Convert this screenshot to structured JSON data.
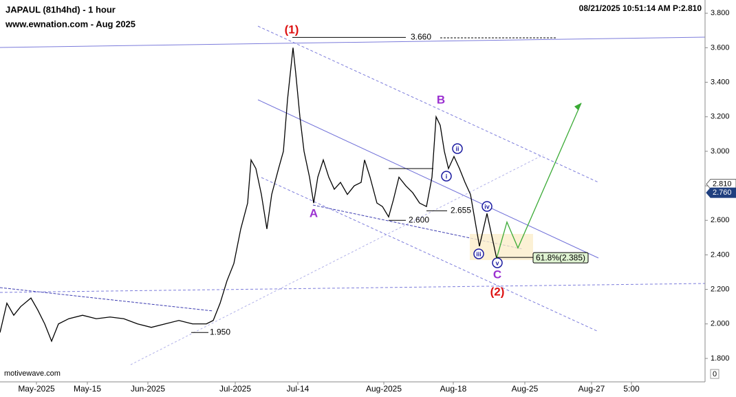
{
  "header": {
    "title": "JAPAUL (81h4hd) - 1 hour",
    "subtitle": "www.ewnation.com  - Aug 2025",
    "status": "08/21/2025 10:51:14 AM  P:2.810",
    "footer": "motivewave.com",
    "scroll_marker": "0"
  },
  "chart_data": {
    "type": "line",
    "x": [
      0,
      10,
      20,
      30,
      45,
      55,
      65,
      75,
      85,
      100,
      120,
      140,
      160,
      180,
      200,
      220,
      240,
      260,
      280,
      300,
      310,
      320,
      330,
      340,
      350,
      360,
      365,
      372,
      380,
      388,
      395,
      405,
      412,
      418,
      422,
      426,
      430,
      436,
      442,
      450,
      456,
      462,
      470,
      478,
      486,
      495,
      505,
      515,
      525,
      530,
      538,
      548,
      556,
      565,
      572,
      580,
      590,
      600,
      610,
      620,
      628,
      634,
      640,
      646,
      652,
      660,
      668,
      676,
      684
    ],
    "series": [
      {
        "color": "#000000",
        "values": [
          1.95,
          2.12,
          2.05,
          2.1,
          2.15,
          2.08,
          2.0,
          1.9,
          2.0,
          2.03,
          2.05,
          2.03,
          2.04,
          2.03,
          2.0,
          1.98,
          2.0,
          2.02,
          2.0,
          2.0,
          2.02,
          2.12,
          2.25,
          2.35,
          2.55,
          2.7,
          2.95,
          2.9,
          2.75,
          2.55,
          2.75,
          2.9,
          3.0,
          3.3,
          3.45,
          3.6,
          3.45,
          3.2,
          3.0,
          2.85,
          2.7,
          2.85,
          2.95,
          2.85,
          2.78,
          2.82,
          2.75,
          2.8,
          2.82,
          2.95,
          2.85,
          2.7,
          2.68,
          2.62,
          2.72,
          2.85,
          2.8,
          2.76,
          2.7,
          2.68,
          2.85,
          3.2,
          3.15,
          3.0,
          2.9,
          2.97,
          2.9,
          2.82,
          2.75
        ]
      }
    ],
    "projections": [
      {
        "color": "#000000",
        "x": [
          684,
          697,
          708,
          722
        ],
        "values": [
          2.75,
          2.45,
          2.64,
          2.38
        ]
      },
      {
        "color": "#3aaa35",
        "x": [
          722,
          737,
          753,
          845
        ],
        "values": [
          2.38,
          2.59,
          2.44,
          3.28
        ]
      }
    ],
    "xlim": [
      0,
      1025
    ],
    "xticks": [
      {
        "value": 53,
        "label": "May-2025"
      },
      {
        "value": 127,
        "label": "May-15"
      },
      {
        "value": 215,
        "label": "Jun-2025"
      },
      {
        "value": 342,
        "label": "Jul-2025"
      },
      {
        "value": 433,
        "label": "Jul-14"
      },
      {
        "value": 558,
        "label": "Aug-2025"
      },
      {
        "value": 659,
        "label": "Aug-18"
      },
      {
        "value": 763,
        "label": "Aug-25"
      },
      {
        "value": 860,
        "label": "Aug-27"
      },
      {
        "value": 918,
        "label": "5:00"
      }
    ],
    "ylim": [
      1.72,
      3.8765
    ],
    "yticks": [
      {
        "value": 1.8,
        "label": "1.800"
      },
      {
        "value": 2.0,
        "label": "2.000"
      },
      {
        "value": 2.2,
        "label": "2.200"
      },
      {
        "value": 2.4,
        "label": "2.400"
      },
      {
        "value": 2.6,
        "label": "2.600"
      },
      {
        "value": 2.8,
        "label": "2.800"
      },
      {
        "value": 3.0,
        "label": "3.000"
      },
      {
        "value": 3.2,
        "label": "3.200"
      },
      {
        "value": 3.4,
        "label": "3.400"
      },
      {
        "value": 3.6,
        "label": "3.600"
      },
      {
        "value": 3.8,
        "label": "3.800"
      }
    ],
    "price_markers": [
      {
        "value": 2.81,
        "label": "2.810",
        "color": "#ffffff"
      },
      {
        "value": 2.76,
        "label": "2.760",
        "color": "#1f3f7f"
      }
    ],
    "levels": [
      {
        "value": 3.66,
        "label": "3.660"
      },
      {
        "value": 2.6,
        "label": "2.600"
      },
      {
        "value": 2.655,
        "label": "2.655"
      },
      {
        "value": 1.95,
        "label": "1.950"
      }
    ],
    "target": {
      "value": 2.385,
      "label": "61.8%(2.385)"
    },
    "waves": [
      "(1)",
      "A",
      "B",
      "C",
      "(2)",
      "i",
      "ii",
      "iii",
      "iv",
      "v"
    ]
  }
}
